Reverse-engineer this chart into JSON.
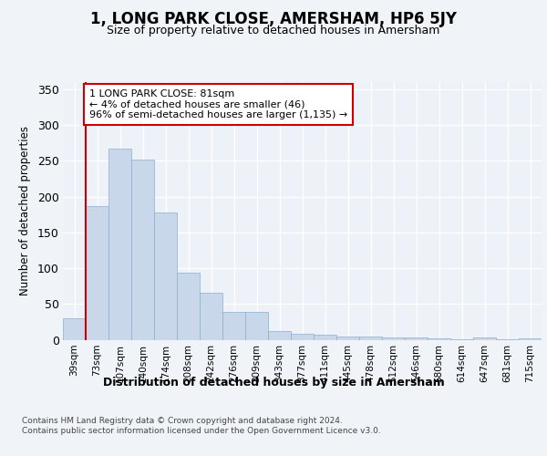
{
  "title": "1, LONG PARK CLOSE, AMERSHAM, HP6 5JY",
  "subtitle": "Size of property relative to detached houses in Amersham",
  "xlabel": "Distribution of detached houses by size in Amersham",
  "ylabel": "Number of detached properties",
  "bar_color": "#c8d8ea",
  "bar_edge_color": "#8ab0d0",
  "highlight_edge_color": "#cc0000",
  "annotation_box_edgecolor": "#cc0000",
  "categories": [
    "39sqm",
    "73sqm",
    "107sqm",
    "140sqm",
    "174sqm",
    "208sqm",
    "242sqm",
    "276sqm",
    "309sqm",
    "343sqm",
    "377sqm",
    "411sqm",
    "445sqm",
    "478sqm",
    "512sqm",
    "546sqm",
    "580sqm",
    "614sqm",
    "647sqm",
    "681sqm",
    "715sqm"
  ],
  "values": [
    30,
    187,
    267,
    252,
    178,
    94,
    65,
    39,
    39,
    12,
    8,
    7,
    5,
    5,
    3,
    3,
    2,
    1,
    3,
    1,
    2
  ],
  "highlight_bar_index": 1,
  "red_line_x": 0.5,
  "ylim": [
    0,
    360
  ],
  "yticks": [
    0,
    50,
    100,
    150,
    200,
    250,
    300,
    350
  ],
  "annotation_text": "1 LONG PARK CLOSE: 81sqm\n← 4% of detached houses are smaller (46)\n96% of semi-detached houses are larger (1,135) →",
  "footer_text": "Contains HM Land Registry data © Crown copyright and database right 2024.\nContains public sector information licensed under the Open Government Licence v3.0.",
  "background_color": "#f0f4f8",
  "plot_bg_color": "#edf2f8",
  "grid_color": "#ffffff"
}
